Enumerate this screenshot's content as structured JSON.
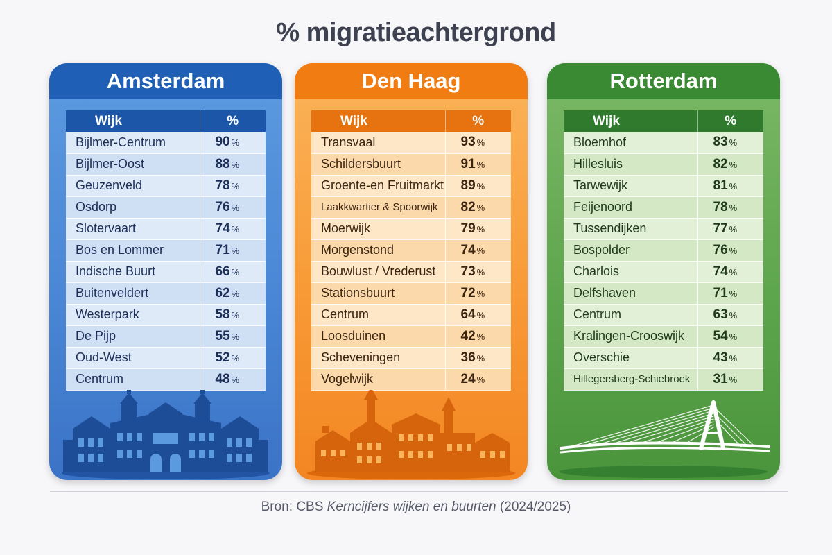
{
  "title": "% migratieachtergrond",
  "source": {
    "prefix": "Bron: ",
    "org": "CBS ",
    "italic": "Kerncijfers wijken en buurten",
    "suffix": " (2024/2025)"
  },
  "colors": {
    "amsterdam": "#1f5fb5",
    "denhaag": "#f07c12",
    "rotterdam": "#3a8a34"
  },
  "chart_data": {
    "type": "table",
    "title": "% migratieachtergrond",
    "columns": [
      "Wijk",
      "%"
    ],
    "unit": "%",
    "cities": [
      {
        "name": "Amsterdam",
        "rows": [
          {
            "wijk": "Bijlmer-Centrum",
            "value": 90
          },
          {
            "wijk": "Bijlmer-Oost",
            "value": 88
          },
          {
            "wijk": "Geuzenveld",
            "value": 78
          },
          {
            "wijk": "Osdorp",
            "value": 76
          },
          {
            "wijk": "Slotervaart",
            "value": 74
          },
          {
            "wijk": "Bos en Lommer",
            "value": 71
          },
          {
            "wijk": "Indische Buurt",
            "value": 66
          },
          {
            "wijk": "Buitenveldert",
            "value": 62
          },
          {
            "wijk": "Westerpark",
            "value": 58
          },
          {
            "wijk": "De Pijp",
            "value": 55
          },
          {
            "wijk": "Oud-West",
            "value": 52
          },
          {
            "wijk": "Centrum",
            "value": 48
          }
        ]
      },
      {
        "name": "Den Haag",
        "rows": [
          {
            "wijk": "Transvaal",
            "value": 93
          },
          {
            "wijk": "Schildersbuurt",
            "value": 91
          },
          {
            "wijk": "Groente-en Fruitmarkt",
            "value": 89
          },
          {
            "wijk": "Laakkwartier & Spoorwijk",
            "value": 82
          },
          {
            "wijk": "Moerwijk",
            "value": 79
          },
          {
            "wijk": "Morgenstond",
            "value": 74
          },
          {
            "wijk": "Bouwlust / Vrederust",
            "value": 73
          },
          {
            "wijk": "Stationsbuurt",
            "value": 72
          },
          {
            "wijk": "Centrum",
            "value": 64
          },
          {
            "wijk": "Loosduinen",
            "value": 42
          },
          {
            "wijk": "Scheveningen",
            "value": 36
          },
          {
            "wijk": "Vogelwijk",
            "value": 24
          }
        ]
      },
      {
        "name": "Rotterdam",
        "rows": [
          {
            "wijk": "Bloemhof",
            "value": 83
          },
          {
            "wijk": "Hillesluis",
            "value": 82
          },
          {
            "wijk": "Tarwewijk",
            "value": 81
          },
          {
            "wijk": "Feijenoord",
            "value": 78
          },
          {
            "wijk": "Tussendijken",
            "value": 77
          },
          {
            "wijk": "Bospolder",
            "value": 76
          },
          {
            "wijk": "Charlois",
            "value": 74
          },
          {
            "wijk": "Delfshaven",
            "value": 71
          },
          {
            "wijk": "Centrum",
            "value": 63
          },
          {
            "wijk": "Kralingen-Crooswijk",
            "value": 54
          },
          {
            "wijk": "Overschie",
            "value": 43
          },
          {
            "wijk": "Hillegersberg-Schiebroek",
            "value": 31
          }
        ]
      }
    ]
  }
}
